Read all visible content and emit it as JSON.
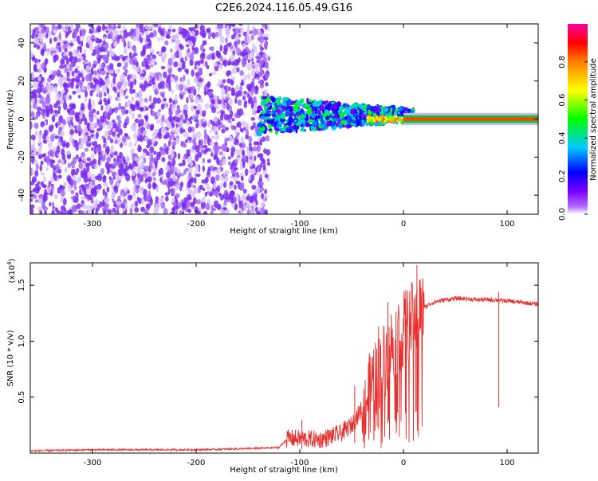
{
  "title": "C2E6.2024.116.05.49.G16",
  "chart_data": [
    {
      "type": "heatmap",
      "xlabel": "Height of straight line (km)",
      "ylabel": "Frequency (Hz)",
      "xlim": [
        -360,
        130
      ],
      "ylim": [
        -50,
        50
      ],
      "x_ticks": [
        -300,
        -200,
        -100,
        0,
        100
      ],
      "x_tick_labels": [
        "-300",
        "-200",
        "-100",
        "0",
        "100"
      ],
      "y_ticks": [
        -40,
        -20,
        0,
        20,
        40
      ],
      "y_tick_labels": [
        "-40",
        "-20",
        "0",
        "20",
        "40"
      ],
      "grid": false,
      "colorbar": {
        "label": "Normalized spectral amplitude",
        "range": [
          0,
          1
        ],
        "ticks": [
          0.0,
          0.2,
          0.4,
          0.6,
          0.8
        ],
        "tick_labels": [
          "0.0",
          "0.2",
          "0.4",
          "0.6",
          "0.8"
        ],
        "colors": [
          "#ffffff",
          "#9900ff",
          "#0000ff",
          "#00ffff",
          "#00ff00",
          "#ffff00",
          "#ff8000",
          "#ff0000",
          "#ff0099"
        ]
      },
      "regions": [
        {
          "x_range": [
            -360,
            -130
          ],
          "freq_range": [
            -50,
            50
          ],
          "amplitude_range": [
            0.0,
            0.1
          ],
          "description_color": "#7a2cf0"
        },
        {
          "x_range": [
            -140,
            10
          ],
          "freq_center": 2,
          "freq_halfwidth_start": 10,
          "freq_halfwidth_end": 3,
          "amplitude_range": [
            0.1,
            0.5
          ]
        },
        {
          "x_range": [
            -35,
            10
          ],
          "freq_center": 0,
          "amplitude_range": [
            0.5,
            0.85
          ]
        },
        {
          "x_range": [
            0,
            130
          ],
          "freq_center": 0,
          "amplitude": 0.85,
          "halfwidth": 2
        }
      ]
    },
    {
      "type": "line",
      "xlabel": "Height of straight line (km)",
      "ylabel": "SNR (10 * v/v)",
      "y_multiplier_label": "(x10",
      "y_multiplier_exp": "4",
      "y_multiplier_close": ")",
      "xlim": [
        -360,
        130
      ],
      "ylim": [
        0,
        1.7
      ],
      "x_ticks": [
        -300,
        -200,
        -100,
        0,
        100
      ],
      "x_tick_labels": [
        "-300",
        "-200",
        "-100",
        "0",
        "100"
      ],
      "y_ticks": [
        0.5,
        1.0,
        1.5
      ],
      "y_tick_labels": [
        "0.5",
        "1.0",
        "1.5"
      ],
      "grid": false,
      "color": "#e8302f",
      "series": [
        {
          "x": [
            -360,
            -300,
            -250,
            -200,
            -150,
            -120,
            -112,
            -100,
            -80,
            -60,
            -50,
            -40,
            -30,
            -25,
            -20,
            -15,
            -10,
            -5,
            0,
            5,
            10,
            15,
            20,
            25,
            30,
            40,
            50,
            60,
            70,
            80,
            90,
            95,
            100,
            110,
            120,
            130
          ],
          "y": [
            0.02,
            0.03,
            0.03,
            0.03,
            0.04,
            0.05,
            0.13,
            0.13,
            0.12,
            0.18,
            0.25,
            0.4,
            0.6,
            0.7,
            0.8,
            0.9,
            1.0,
            1.05,
            1.1,
            1.15,
            1.2,
            1.28,
            1.3,
            1.33,
            1.35,
            1.37,
            1.38,
            1.38,
            1.37,
            1.37,
            1.37,
            1.36,
            1.36,
            1.35,
            1.34,
            1.33
          ]
        }
      ],
      "spikes": [
        {
          "x": 13,
          "y": 1.68
        },
        {
          "x": 12,
          "y": 1.25
        },
        {
          "x": -15,
          "y": 1.35
        },
        {
          "x": -24,
          "y": 1.13
        },
        {
          "x": 92,
          "y": 1.44
        },
        {
          "x": -47,
          "y": 0.6
        },
        {
          "x": -98,
          "y": 0.3
        }
      ]
    }
  ]
}
